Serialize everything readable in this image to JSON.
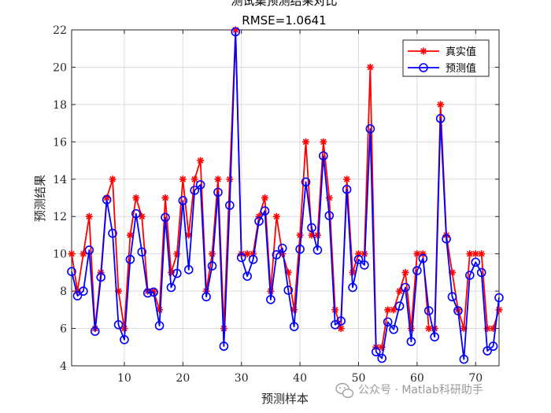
{
  "chart_data": {
    "type": "line",
    "title": "测试集预测结果对比",
    "subtitle": "RMSE=1.0641",
    "xlabel": "预测样本",
    "ylabel": "预测结果",
    "xlim": [
      1,
      74
    ],
    "ylim": [
      4,
      22
    ],
    "xticks": [
      10,
      20,
      30,
      40,
      50,
      60,
      70
    ],
    "yticks": [
      4,
      6,
      8,
      10,
      12,
      14,
      16,
      18,
      20,
      22
    ],
    "grid": true,
    "legend_position": "top-right",
    "series": [
      {
        "name": "真实值",
        "color": "#ff0000",
        "marker": "asterisk",
        "values": [
          10,
          8,
          10,
          12,
          6,
          9,
          13,
          14,
          8,
          6,
          11,
          13,
          12,
          8,
          8,
          7,
          13,
          9,
          10,
          14,
          11,
          14,
          15,
          8,
          10,
          14,
          6,
          14,
          22,
          10,
          10,
          10,
          12,
          13,
          8,
          12,
          10,
          9,
          7,
          11,
          16,
          11,
          11,
          16,
          13,
          7,
          6,
          14,
          9,
          10,
          10,
          20,
          5,
          5,
          7,
          7,
          8,
          9,
          6,
          10,
          10,
          6,
          6,
          18,
          11,
          9,
          7,
          6,
          10,
          10,
          10,
          6,
          6,
          7
        ]
      },
      {
        "name": "预测值",
        "color": "#0000ff",
        "marker": "circle",
        "values": [
          9.05,
          7.75,
          8.0,
          10.2,
          5.85,
          8.75,
          12.9,
          11.1,
          6.2,
          5.4,
          9.7,
          12.15,
          10.1,
          7.9,
          7.95,
          6.15,
          11.95,
          8.2,
          8.95,
          12.85,
          9.15,
          13.4,
          13.7,
          7.7,
          9.35,
          13.3,
          5.05,
          12.6,
          21.9,
          9.8,
          8.8,
          9.7,
          11.75,
          12.3,
          7.55,
          9.95,
          10.3,
          8.05,
          6.1,
          10.25,
          13.85,
          11.4,
          10.2,
          15.25,
          12.05,
          6.2,
          6.4,
          13.45,
          8.2,
          9.7,
          9.4,
          16.7,
          4.75,
          4.4,
          6.35,
          5.95,
          7.2,
          8.2,
          5.3,
          9.1,
          9.75,
          6.95,
          5.55,
          17.25,
          10.8,
          7.7,
          6.95,
          4.35,
          8.85,
          9.55,
          9.0,
          4.8,
          5.05,
          7.65
        ]
      }
    ]
  },
  "watermark": {
    "icon": "wechat-icon",
    "text": "公众号 · Matlab科研助手"
  }
}
